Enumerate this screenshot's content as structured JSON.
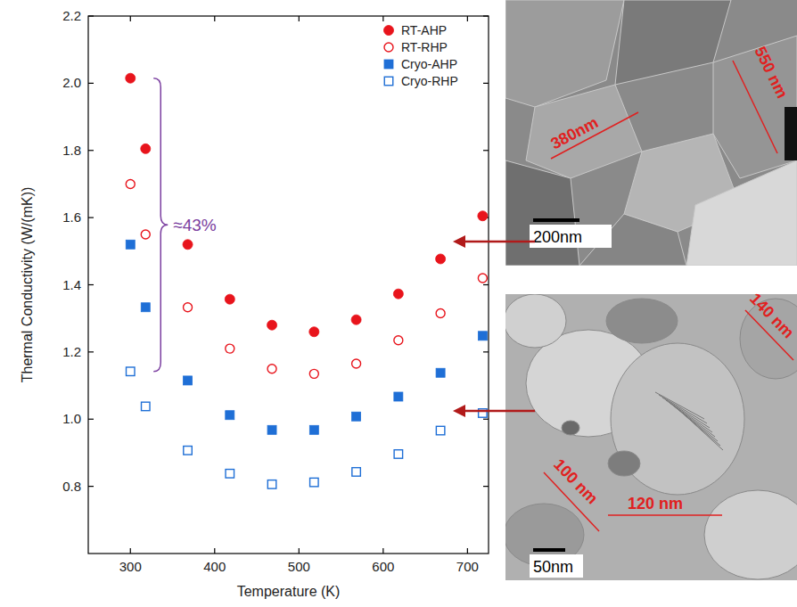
{
  "chart_data": {
    "type": "scatter",
    "x_label": "Temperature (K)",
    "y_label": "Thermal Conductivity (W/(mK))",
    "x": [
      300,
      318,
      368,
      418,
      468,
      518,
      568,
      618,
      668,
      718
    ],
    "xlim": [
      250,
      725
    ],
    "xticks": [
      300,
      400,
      500,
      600,
      700
    ],
    "ylim": [
      0.6,
      2.2
    ],
    "yticks": [
      0.8,
      {
        "value": 1.0,
        "label": "1.0"
      },
      1.2,
      1.4,
      1.6,
      1.8,
      {
        "value": 2.0,
        "label": "2.0"
      },
      2.2
    ],
    "grid": false,
    "legend": "upper right",
    "series": [
      {
        "name": "RT-AHP",
        "color": "#e8141c",
        "marker": "circle",
        "values": [
          2.015,
          1.805,
          1.52,
          1.357,
          1.28,
          1.26,
          1.296,
          1.373,
          1.477,
          1.605
        ]
      },
      {
        "name": "RT-RHP",
        "color": "#e8141c",
        "marker": "open-circle",
        "values": [
          1.7,
          1.55,
          1.333,
          1.21,
          1.15,
          1.135,
          1.165,
          1.235,
          1.315,
          1.42
        ]
      },
      {
        "name": "Cryo-AHP",
        "color": "#1f6fd6",
        "marker": "square",
        "values": [
          1.52,
          1.333,
          1.115,
          1.012,
          0.968,
          0.968,
          1.008,
          1.067,
          1.138,
          1.248
        ]
      },
      {
        "name": "Cryo-RHP",
        "color": "#1f6fd6",
        "marker": "open-square",
        "values": [
          1.142,
          1.038,
          0.907,
          0.838,
          0.806,
          0.812,
          0.843,
          0.896,
          0.966,
          1.018
        ]
      }
    ],
    "annotation": {
      "text": "≈43%",
      "x": 300,
      "y_range": [
        1.142,
        2.015
      ],
      "color": "#7b3fa0"
    }
  },
  "micrographs": [
    {
      "scale_bar": "200nm",
      "labels": [
        "380nm",
        "550 nm"
      ]
    },
    {
      "scale_bar": "50nm",
      "labels": [
        "140 nm",
        "100 nm",
        "120 nm"
      ]
    }
  ]
}
